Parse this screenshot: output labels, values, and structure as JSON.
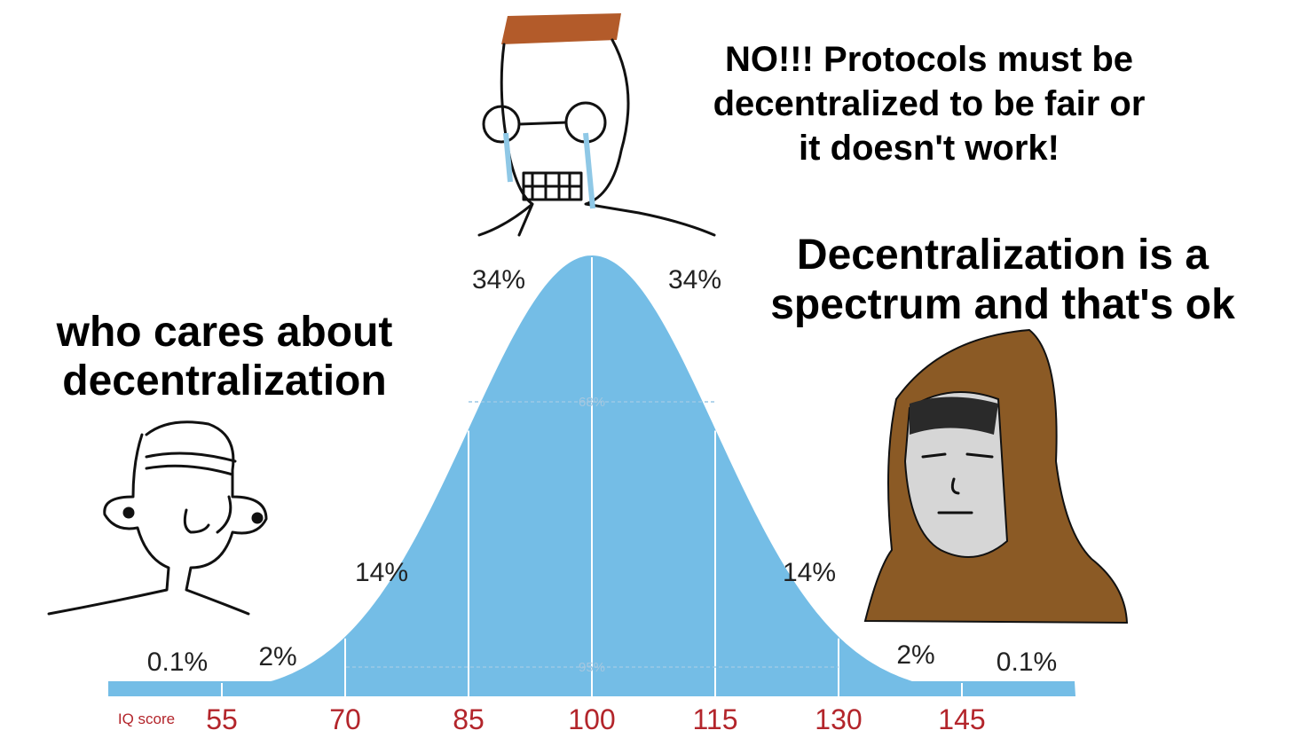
{
  "captions": {
    "top": [
      "NO!!! Protocols must be",
      "decentralized to be fair or",
      "it doesn't work!"
    ],
    "left": [
      "who cares about",
      "decentralization"
    ],
    "right": [
      "Decentralization is a",
      "spectrum and that's ok"
    ]
  },
  "curve": {
    "segment_labels": [
      "0.1%",
      "2%",
      "14%",
      "34%",
      "34%",
      "14%",
      "2%",
      "0.1%"
    ],
    "inner_labels": [
      "68%",
      "95%"
    ]
  },
  "axis": {
    "label": "IQ score",
    "ticks": [
      55,
      70,
      85,
      100,
      115,
      130,
      145
    ]
  }
}
